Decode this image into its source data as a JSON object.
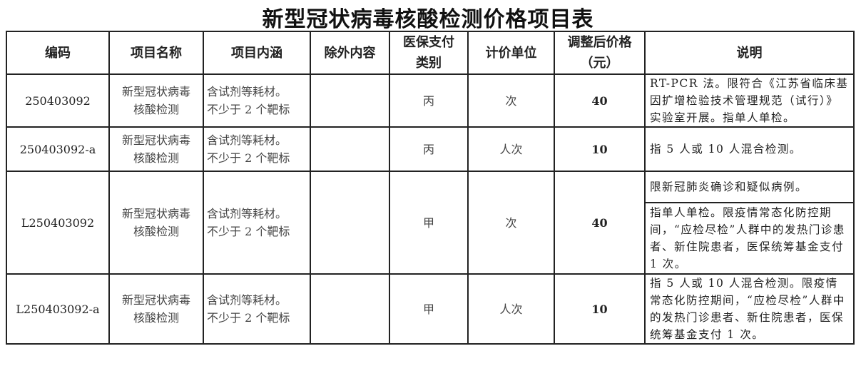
{
  "title": "新型冠状病毒核酸检测价格项目表",
  "headers": [
    "编码",
    "项目名称",
    "项目内涵",
    "除外内容",
    "医保支付类别",
    "计价单位",
    "调整后价格（元）",
    "说明"
  ],
  "header_lines": {
    "insurance_1": "医保支付",
    "insurance_2": "类别",
    "price_1": "调整后价格",
    "price_2": "（元）"
  },
  "rows": [
    {
      "code": "250403092",
      "name_1": "新型冠状病毒",
      "name_2": "核酸检测",
      "content_1": "含试剂等耗材。",
      "content_2": "不少于 2 个靶标",
      "excluded": "",
      "category": "丙",
      "unit": "次",
      "price": "40",
      "notes": [
        "RT-PCR 法。限符合《江苏省临床基因扩增检验技术管理规范（试行）》实验室开展。指单人单检。"
      ]
    },
    {
      "code": "250403092-a",
      "name_1": "新型冠状病毒",
      "name_2": "核酸检测",
      "content_1": "含试剂等耗材。",
      "content_2": "不少于 2 个靶标",
      "excluded": "",
      "category": "丙",
      "unit": "人次",
      "price": "10",
      "notes": [
        "指 5 人或 10 人混合检测。"
      ]
    },
    {
      "code": "L250403092",
      "name_1": "新型冠状病毒",
      "name_2": "核酸检测",
      "content_1": "含试剂等耗材。",
      "content_2": "不少于 2 个靶标",
      "excluded": "",
      "category": "甲",
      "unit": "次",
      "price": "40",
      "notes": [
        "限新冠肺炎确诊和疑似病例。",
        "指单人单检。限疫情常态化防控期间，“应检尽检”人群中的发热门诊患者、新住院患者，医保统筹基金支付 1 次。"
      ]
    },
    {
      "code": "L250403092-a",
      "name_1": "新型冠状病毒",
      "name_2": "核酸检测",
      "content_1": "含试剂等耗材。",
      "content_2": "不少于 2 个靶标",
      "excluded": "",
      "category": "甲",
      "unit": "人次",
      "price": "10",
      "notes": [
        "指 5 人或 10 人混合检测。限疫情常态化防控期间，“应检尽检”人群中的发热门诊患者、新住院患者，医保统筹基金支付 1 次。"
      ]
    }
  ]
}
